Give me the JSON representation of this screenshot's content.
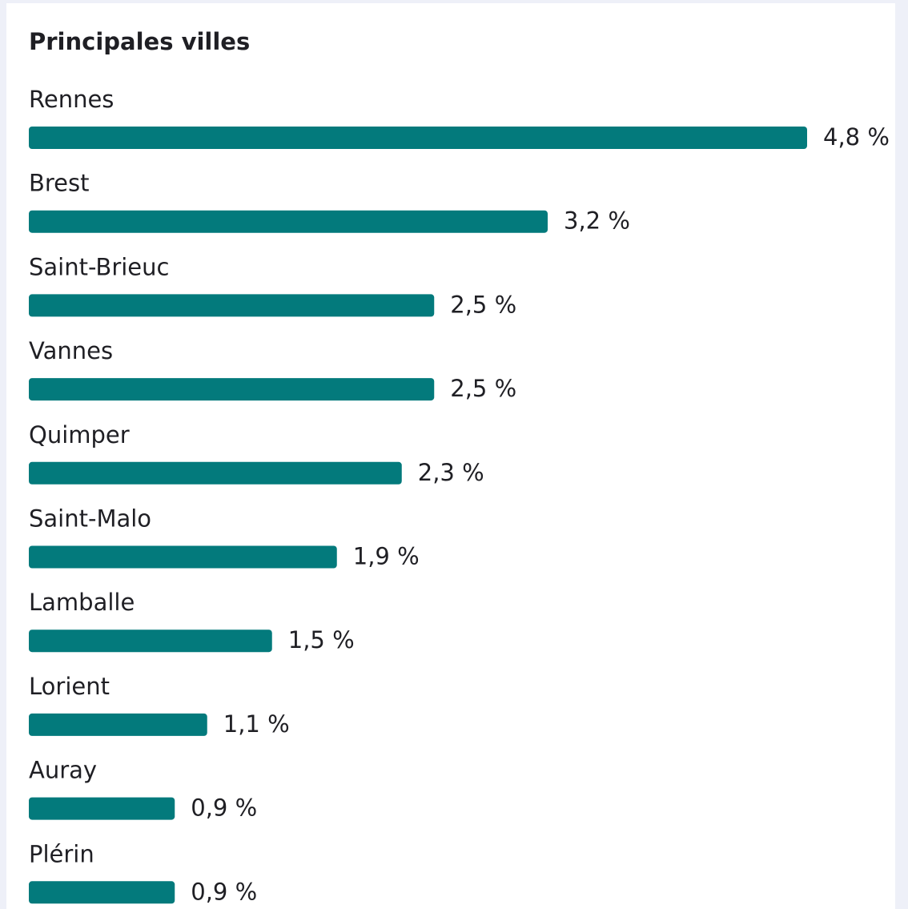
{
  "chart_data": {
    "type": "bar",
    "orientation": "horizontal",
    "title": "Principales villes",
    "categories": [
      "Rennes",
      "Brest",
      "Saint-Brieuc",
      "Vannes",
      "Quimper",
      "Saint-Malo",
      "Lamballe",
      "Lorient",
      "Auray",
      "Plérin"
    ],
    "values": [
      4.8,
      3.2,
      2.5,
      2.5,
      2.3,
      1.9,
      1.5,
      1.1,
      0.9,
      0.9
    ],
    "value_labels": [
      "4,8 %",
      "3,2 %",
      "2,5 %",
      "2,5 %",
      "2,3 %",
      "1,9 %",
      "1,5 %",
      "1,1 %",
      "0,9 %",
      "0,9 %"
    ],
    "color": "#037a7c"
  }
}
